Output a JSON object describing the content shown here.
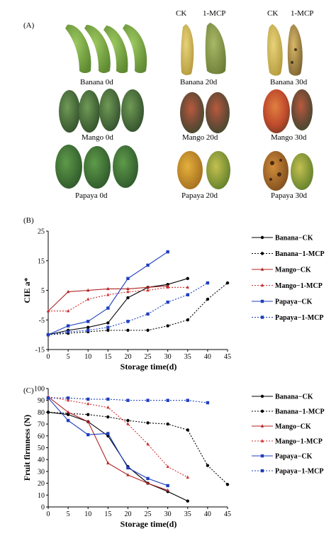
{
  "panel_a": {
    "letter": "(A)",
    "col_headers": [
      {
        "ck": "CK",
        "mcp": "1-MCP"
      },
      {
        "ck": "CK",
        "mcp": "1-MCP"
      }
    ],
    "captions": {
      "banana_0": "Banana  0d",
      "banana_20": "Banana  20d",
      "banana_30": "Banana  30d",
      "mango_0": "Mango  0d",
      "mango_20": "Mango  20d",
      "mango_30": "Mango  30d",
      "papaya_0": "Papaya 0d",
      "papaya_20": "Papaya  20d",
      "papaya_30": "Papaya  30d"
    }
  },
  "chart_data": [
    {
      "type": "line",
      "panel": "(B)",
      "ylabel": "CIE a*",
      "xlabel": "Storage time(d)",
      "xlim": [
        0,
        45
      ],
      "ylim": [
        -15,
        25
      ],
      "xticks": [
        0,
        5,
        10,
        15,
        20,
        25,
        30,
        35,
        40,
        45
      ],
      "yticks": [
        -15,
        -5,
        5,
        15,
        25
      ],
      "legend_position": "right",
      "series": [
        {
          "name": "Banana−CK",
          "color": "#000000",
          "dashed": false,
          "marker": "circle",
          "x": [
            0,
            5,
            10,
            15,
            20,
            25,
            30,
            35
          ],
          "y": [
            -10,
            -8.5,
            -7.5,
            -6,
            2.5,
            6,
            7,
            9
          ]
        },
        {
          "name": "Banana−1-MCP",
          "color": "#000000",
          "dashed": true,
          "marker": "circle",
          "x": [
            0,
            5,
            10,
            15,
            20,
            25,
            30,
            35,
            40,
            45
          ],
          "y": [
            -10,
            -9.5,
            -9,
            -8.5,
            -8.5,
            -8.5,
            -7,
            -5,
            2,
            7.5
          ]
        },
        {
          "name": "Mango−CK",
          "color": "#b22222",
          "dashed": false,
          "marker": "triangle",
          "x": [
            0,
            5,
            10,
            15,
            20,
            25,
            30
          ],
          "y": [
            -2,
            4.5,
            5,
            5.5,
            5.5,
            6,
            6.5
          ]
        },
        {
          "name": "Mango−1-MCP",
          "color": "#d03030",
          "dashed": true,
          "marker": "triangle",
          "x": [
            0,
            5,
            10,
            15,
            20,
            25,
            30,
            35
          ],
          "y": [
            -2,
            -2,
            2,
            3.5,
            4.5,
            5,
            6,
            6
          ]
        },
        {
          "name": "Papaya−CK",
          "color": "#1f3fbf",
          "dashed": false,
          "marker": "square",
          "x": [
            0,
            5,
            10,
            15,
            20,
            25,
            30
          ],
          "y": [
            -10,
            -7,
            -5.5,
            -1,
            9,
            13.5,
            18
          ]
        },
        {
          "name": "Papaya−1-MCP",
          "color": "#1f3fbf",
          "dashed": true,
          "marker": "square",
          "x": [
            0,
            5,
            10,
            15,
            20,
            25,
            30,
            35,
            40
          ],
          "y": [
            -10,
            -9,
            -8.5,
            -7.5,
            -5.5,
            -3,
            1,
            3.5,
            7.5
          ]
        }
      ]
    },
    {
      "type": "line",
      "panel": "(C)",
      "ylabel": "Fruit firmness (N)",
      "xlabel": "Storage time(d)",
      "xlim": [
        0,
        45
      ],
      "ylim": [
        0,
        100
      ],
      "xticks": [
        0,
        5,
        10,
        15,
        20,
        25,
        30,
        35,
        40,
        45
      ],
      "yticks": [
        0,
        10,
        20,
        30,
        40,
        50,
        60,
        70,
        80,
        90,
        100
      ],
      "legend_position": "right",
      "series": [
        {
          "name": "Banana−CK",
          "color": "#000000",
          "dashed": false,
          "marker": "circle",
          "x": [
            0,
            5,
            10,
            15,
            20,
            25,
            30,
            35
          ],
          "y": [
            80,
            78,
            72,
            60,
            34,
            20,
            13,
            5
          ]
        },
        {
          "name": "Banana−1-MCP",
          "color": "#000000",
          "dashed": true,
          "marker": "circle",
          "x": [
            0,
            5,
            10,
            15,
            20,
            25,
            30,
            35,
            40,
            45
          ],
          "y": [
            80,
            79,
            78,
            76,
            73,
            71,
            70,
            65,
            35,
            19
          ]
        },
        {
          "name": "Mango−CK",
          "color": "#b22222",
          "dashed": false,
          "marker": "triangle",
          "x": [
            0,
            5,
            10,
            15,
            20,
            25,
            30
          ],
          "y": [
            93,
            80,
            72,
            37,
            27,
            20,
            14
          ]
        },
        {
          "name": "Mango−1-MCP",
          "color": "#d03030",
          "dashed": true,
          "marker": "triangle",
          "x": [
            0,
            5,
            10,
            15,
            20,
            25,
            30,
            35
          ],
          "y": [
            93,
            90,
            87,
            84,
            70,
            53,
            34,
            25
          ]
        },
        {
          "name": "Papaya−CK",
          "color": "#1f3fbf",
          "dashed": false,
          "marker": "square",
          "x": [
            0,
            5,
            10,
            15,
            20,
            25,
            30
          ],
          "y": [
            92,
            73,
            61,
            62,
            33,
            24,
            18
          ]
        },
        {
          "name": "Papaya−1-MCP",
          "color": "#1f3fbf",
          "dashed": true,
          "marker": "square",
          "x": [
            0,
            5,
            10,
            15,
            20,
            25,
            30,
            35,
            40
          ],
          "y": [
            92,
            92,
            91,
            91,
            90,
            90,
            90,
            90,
            88
          ]
        }
      ]
    }
  ]
}
